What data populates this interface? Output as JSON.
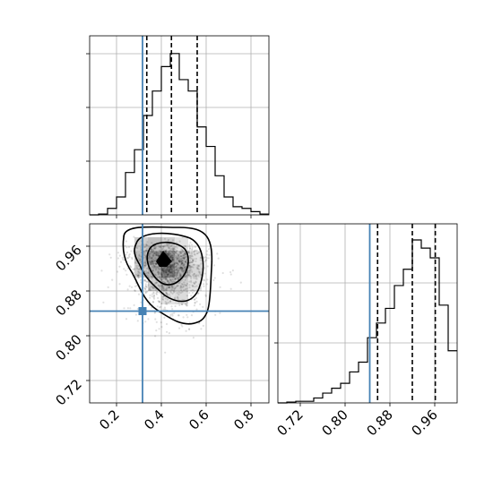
{
  "chart_data": {
    "type": "corner",
    "parameters": [
      {
        "name": "",
        "truth": 0.316,
        "quantiles": [
          0.335,
          0.445,
          0.56
        ],
        "range": [
          0.08,
          0.88
        ],
        "ticks": [
          "0.2",
          "0.4",
          "0.6",
          "0.8"
        ]
      },
      {
        "name": "",
        "truth": 0.844,
        "quantiles": [
          0.858,
          0.92,
          0.961
        ],
        "range": [
          0.68,
          1.0
        ],
        "ticks": [
          "0.72",
          "0.80",
          "0.88",
          "0.96"
        ]
      }
    ],
    "panels": [
      {
        "id": "hist-param-1",
        "type": "histogram",
        "bin_edges": [
          0.08,
          0.12,
          0.16,
          0.2,
          0.24,
          0.28,
          0.32,
          0.36,
          0.4,
          0.44,
          0.48,
          0.52,
          0.56,
          0.6,
          0.64,
          0.68,
          0.72,
          0.76,
          0.8,
          0.84,
          0.88
        ],
        "counts": [
          0.0,
          0.005,
          0.04,
          0.11,
          0.26,
          0.4,
          0.61,
          0.76,
          0.91,
          0.99,
          0.83,
          0.76,
          0.54,
          0.42,
          0.24,
          0.11,
          0.05,
          0.04,
          0.02,
          0.005
        ],
        "xlim": [
          0.08,
          0.88
        ],
        "ylim": [
          0,
          1.0
        ]
      },
      {
        "id": "scatter-param-1-vs-param-2",
        "type": "scatter",
        "x_param": 0,
        "y_param": 1,
        "density_center": [
          0.43,
          0.95
        ],
        "contour_levels": 3,
        "xlim": [
          0.08,
          0.88
        ],
        "ylim": [
          0.68,
          1.0
        ],
        "truth_point": [
          0.316,
          0.844
        ]
      },
      {
        "id": "hist-param-2",
        "type": "histogram",
        "bin_edges": [
          0.68,
          0.696,
          0.712,
          0.728,
          0.744,
          0.76,
          0.776,
          0.792,
          0.808,
          0.824,
          0.84,
          0.856,
          0.872,
          0.888,
          0.904,
          0.92,
          0.936,
          0.952,
          0.968,
          0.984,
          1.0
        ],
        "counts": [
          0.0,
          0.005,
          0.01,
          0.01,
          0.03,
          0.06,
          0.09,
          0.12,
          0.19,
          0.25,
          0.4,
          0.49,
          0.58,
          0.72,
          0.82,
          1.0,
          0.95,
          0.89,
          0.6,
          0.32
        ],
        "xlim": [
          0.68,
          1.0
        ],
        "ylim": [
          0,
          1.0
        ]
      }
    ],
    "colors": {
      "truth": "#4682b4",
      "hist": "#000000",
      "grid": "#b0b0b0",
      "points": "#000000"
    },
    "grid": true
  }
}
